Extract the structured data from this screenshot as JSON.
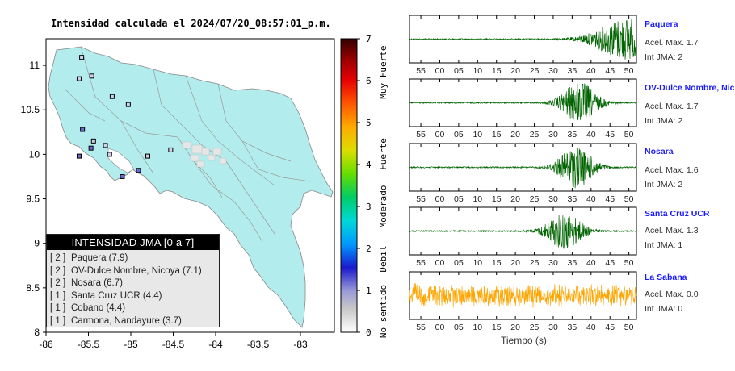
{
  "map": {
    "title": "Intensidad calculada el 2024/07/20_08:57:01_p.m.",
    "x_ticks": [
      "-86",
      "-85.5",
      "-85",
      "-84.5",
      "-84",
      "-83.5",
      "-83"
    ],
    "y_ticks": [
      "11",
      "10.5",
      "10",
      "9.5",
      "9",
      "8.5",
      "8"
    ],
    "land_color": "#b3ecec",
    "stations": [
      {
        "lon": -85.58,
        "lat": 11.09,
        "level": 1
      },
      {
        "lon": -85.61,
        "lat": 10.85,
        "level": 1
      },
      {
        "lon": -85.46,
        "lat": 10.88,
        "level": 1
      },
      {
        "lon": -85.22,
        "lat": 10.65,
        "level": 1
      },
      {
        "lon": -85.03,
        "lat": 10.56,
        "level": 1
      },
      {
        "lon": -85.57,
        "lat": 10.28,
        "level": 2
      },
      {
        "lon": -85.44,
        "lat": 10.15,
        "level": 1
      },
      {
        "lon": -85.47,
        "lat": 10.07,
        "level": 2
      },
      {
        "lon": -85.3,
        "lat": 10.1,
        "level": 1
      },
      {
        "lon": -85.61,
        "lat": 9.98,
        "level": 2
      },
      {
        "lon": -85.25,
        "lat": 10.0,
        "level": 1
      },
      {
        "lon": -85.1,
        "lat": 9.75,
        "level": 2
      },
      {
        "lon": -84.91,
        "lat": 9.82,
        "level": 2
      },
      {
        "lon": -84.8,
        "lat": 9.98,
        "level": 1
      },
      {
        "lon": -84.53,
        "lat": 10.05,
        "level": 1
      }
    ]
  },
  "colorbar": {
    "ticks": [
      "0",
      "1",
      "2",
      "3",
      "4",
      "5",
      "6",
      "7"
    ],
    "categories": [
      "No sentido",
      "Debil",
      "Moderado",
      "Fuerte",
      "Muy Fuerte"
    ]
  },
  "legend": {
    "title": "INTENSIDAD JMA [0 a 7]",
    "rows": [
      {
        "level": "[ 2 ]",
        "name": "Paquera (7.9)"
      },
      {
        "level": "[ 2 ]",
        "name": "OV-Dulce Nombre, Nicoya (7.1)"
      },
      {
        "level": "[ 2 ]",
        "name": "Nosara (6.7)"
      },
      {
        "level": "[ 1 ]",
        "name": "Santa Cruz UCR (4.4)"
      },
      {
        "level": "[ 1 ]",
        "name": "Cobano (4.4)"
      },
      {
        "level": "[ 1 ]",
        "name": "Carmona, Nandayure (3.7)"
      }
    ]
  },
  "seismograms": {
    "time_ticks": [
      "55",
      "00",
      "05",
      "10",
      "15",
      "20",
      "25",
      "30",
      "35",
      "40",
      "45",
      "50"
    ],
    "xlabel": "Tiempo (s)",
    "stations": [
      {
        "name": "Paquera",
        "accel": "Acel. Max. 1.7",
        "jma": "Int JMA: 2",
        "color": "#006400",
        "center": 50,
        "width": 9,
        "amp": 1.0
      },
      {
        "name": "OV-Dulce Nombre, Nicoya",
        "accel": "Acel. Max. 1.7",
        "jma": "Int JMA: 2",
        "color": "#006400",
        "center": 37,
        "width": 5,
        "amp": 0.95
      },
      {
        "name": "Nosara",
        "accel": "Acel. Max. 1.6",
        "jma": "Int JMA: 2",
        "color": "#006400",
        "center": 36,
        "width": 5,
        "amp": 0.95
      },
      {
        "name": "Santa Cruz UCR",
        "accel": "Acel. Max. 1.3",
        "jma": "Int JMA: 1",
        "color": "#006400",
        "center": 33,
        "width": 5,
        "amp": 0.85
      },
      {
        "name": "La Sabana",
        "accel": "Acel. Max. 0.0",
        "jma": "Int JMA: 0",
        "color": "#ffa500",
        "center": -1,
        "width": 0,
        "amp": 0.6
      }
    ]
  }
}
